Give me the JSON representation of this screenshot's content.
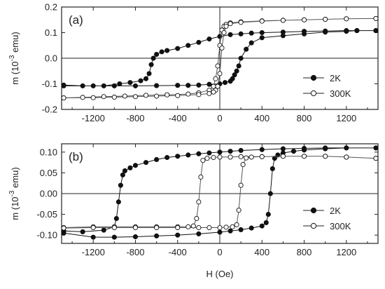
{
  "chart_data": [
    {
      "type": "line",
      "panel_label": "(a)",
      "xlabel": "",
      "ylabel": "m (10^-3 emu)",
      "xlim": [
        -1500,
        1500
      ],
      "ylim": [
        -0.2,
        0.2
      ],
      "x_ticks": [
        -1200,
        -800,
        -400,
        0,
        400,
        800,
        1200
      ],
      "y_ticks": [
        -0.2,
        -0.1,
        0.0,
        0.1,
        0.2
      ],
      "y_tick_labels": [
        "-0.2",
        "-0.1",
        "0.0",
        "0.1",
        "0.2"
      ],
      "zero_lines": true,
      "legend_position": "lower-right",
      "series": [
        {
          "name": "2K",
          "marker": "filled-circle",
          "x": [
            -1480,
            -1300,
            -1100,
            -950,
            -850,
            -750,
            -700,
            -670,
            -650,
            -630,
            -600,
            -550,
            -500,
            -400,
            -300,
            -200,
            -100,
            0,
            100,
            200,
            300,
            400,
            600,
            800,
            1000,
            1200,
            1300,
            1480,
            1480,
            1300,
            1200,
            1000,
            800,
            600,
            400,
            300,
            250,
            200,
            180,
            160,
            140,
            120,
            100,
            50,
            0,
            -100,
            -200,
            -300,
            -400,
            -600,
            -800,
            -1000,
            -1200,
            -1480
          ],
          "y": [
            -0.105,
            -0.108,
            -0.108,
            -0.1,
            -0.095,
            -0.088,
            -0.08,
            -0.06,
            -0.025,
            0.0,
            0.015,
            0.025,
            0.03,
            0.038,
            0.05,
            0.062,
            0.075,
            0.085,
            0.092,
            0.095,
            0.098,
            0.1,
            0.102,
            0.105,
            0.106,
            0.108,
            0.108,
            0.108,
            0.108,
            0.108,
            0.105,
            0.102,
            0.095,
            0.088,
            0.08,
            0.06,
            0.035,
            0.0,
            -0.03,
            -0.05,
            -0.065,
            -0.08,
            -0.09,
            -0.095,
            -0.1,
            -0.102,
            -0.105,
            -0.106,
            -0.106,
            -0.107,
            -0.108,
            -0.108,
            -0.108,
            -0.108
          ]
        },
        {
          "name": "300K",
          "marker": "open-circle",
          "x": [
            -1480,
            -1300,
            -1100,
            -900,
            -700,
            -500,
            -300,
            -200,
            -100,
            -60,
            -40,
            -20,
            0,
            20,
            40,
            60,
            100,
            200,
            400,
            600,
            800,
            1000,
            1200,
            1480,
            1480,
            1200,
            1000,
            800,
            600,
            400,
            200,
            100,
            60,
            40,
            20,
            0,
            -20,
            -40,
            -60,
            -100,
            -200,
            -400,
            -600,
            -800,
            -1000,
            -1200,
            -1480
          ],
          "y": [
            -0.155,
            -0.153,
            -0.15,
            -0.148,
            -0.145,
            -0.143,
            -0.14,
            -0.135,
            -0.125,
            -0.11,
            -0.08,
            -0.03,
            0.05,
            0.11,
            0.125,
            0.132,
            0.138,
            0.142,
            0.146,
            0.148,
            0.15,
            0.152,
            0.154,
            0.155,
            0.155,
            0.154,
            0.152,
            0.15,
            0.148,
            0.145,
            0.14,
            0.135,
            0.125,
            0.1,
            0.04,
            -0.06,
            -0.11,
            -0.125,
            -0.132,
            -0.138,
            -0.142,
            -0.146,
            -0.148,
            -0.15,
            -0.152,
            -0.154,
            -0.155
          ]
        }
      ]
    },
    {
      "type": "line",
      "panel_label": "(b)",
      "xlabel": "H (Oe)",
      "ylabel": "m (10^-3 emu)",
      "xlim": [
        -1500,
        1500
      ],
      "ylim": [
        -0.12,
        0.12
      ],
      "x_ticks": [
        -1200,
        -800,
        -400,
        0,
        400,
        800,
        1200
      ],
      "y_ticks": [
        -0.1,
        -0.05,
        0.0,
        0.05,
        0.1
      ],
      "y_tick_labels": [
        "-0.10",
        "-0.05",
        "0.00",
        "0.05",
        "0.10"
      ],
      "zero_lines": true,
      "legend_position": "lower-right",
      "series": [
        {
          "name": "2K",
          "marker": "filled-circle",
          "x": [
            -1480,
            -1300,
            -1100,
            -1000,
            -980,
            -960,
            -940,
            -920,
            -900,
            -850,
            -800,
            -700,
            -600,
            -500,
            -400,
            -300,
            -200,
            -100,
            0,
            100,
            200,
            400,
            600,
            800,
            1000,
            1200,
            1480,
            1480,
            1200,
            1000,
            800,
            700,
            600,
            550,
            520,
            500,
            480,
            460,
            440,
            400,
            300,
            200,
            100,
            0,
            -200,
            -400,
            -600,
            -800,
            -1000,
            -1200,
            -1480
          ],
          "y": [
            -0.09,
            -0.092,
            -0.088,
            -0.08,
            -0.06,
            -0.02,
            0.02,
            0.045,
            0.055,
            0.062,
            0.068,
            0.075,
            0.082,
            0.087,
            0.09,
            0.093,
            0.096,
            0.098,
            0.1,
            0.102,
            0.104,
            0.106,
            0.108,
            0.109,
            0.11,
            0.11,
            0.11,
            0.11,
            0.11,
            0.108,
            0.105,
            0.102,
            0.098,
            0.093,
            0.085,
            0.06,
            0.0,
            -0.05,
            -0.07,
            -0.078,
            -0.083,
            -0.087,
            -0.09,
            -0.093,
            -0.097,
            -0.1,
            -0.102,
            -0.104,
            -0.105,
            -0.105,
            -0.095
          ]
        },
        {
          "name": "300K",
          "marker": "open-circle",
          "x": [
            -1480,
            -1200,
            -1000,
            -800,
            -600,
            -400,
            -300,
            -250,
            -220,
            -200,
            -180,
            -160,
            -120,
            -60,
            0,
            100,
            200,
            400,
            600,
            800,
            1000,
            1200,
            1480,
            1480,
            1200,
            1000,
            800,
            600,
            400,
            300,
            250,
            220,
            200,
            180,
            160,
            120,
            60,
            0,
            -100,
            -200,
            -400,
            -600,
            -800,
            -1000,
            -1200,
            -1480
          ],
          "y": [
            -0.082,
            -0.08,
            -0.08,
            -0.08,
            -0.08,
            -0.08,
            -0.08,
            -0.078,
            -0.06,
            -0.02,
            0.04,
            0.08,
            0.085,
            0.087,
            0.088,
            0.088,
            0.089,
            0.089,
            0.09,
            0.09,
            0.09,
            0.088,
            0.085,
            0.085,
            0.088,
            0.09,
            0.09,
            0.09,
            0.089,
            0.088,
            0.086,
            0.07,
            0.02,
            -0.04,
            -0.075,
            -0.08,
            -0.081,
            -0.082,
            -0.082,
            -0.082,
            -0.082,
            -0.082,
            -0.082,
            -0.082,
            -0.082,
            -0.083
          ]
        }
      ]
    }
  ]
}
